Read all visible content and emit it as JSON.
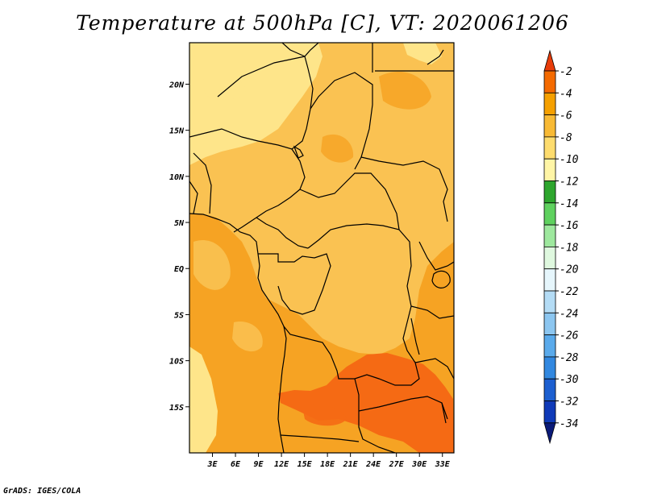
{
  "title": "Temperature at 500hPa [C], VT: 2020061206",
  "credit": "GrADS: IGES/COLA",
  "map": {
    "lon_range": [
      0,
      34.5
    ],
    "lat_range": [
      -20,
      24.5
    ],
    "lon_ticks": [
      {
        "value": 3,
        "label": "3E"
      },
      {
        "value": 6,
        "label": "6E"
      },
      {
        "value": 9,
        "label": "9E"
      },
      {
        "value": 12,
        "label": "12E"
      },
      {
        "value": 15,
        "label": "15E"
      },
      {
        "value": 18,
        "label": "18E"
      },
      {
        "value": 21,
        "label": "21E"
      },
      {
        "value": 24,
        "label": "24E"
      },
      {
        "value": 27,
        "label": "27E"
      },
      {
        "value": 30,
        "label": "30E"
      },
      {
        "value": 33,
        "label": "33E"
      }
    ],
    "lat_ticks": [
      {
        "value": 20,
        "label": "20N"
      },
      {
        "value": 15,
        "label": "15N"
      },
      {
        "value": 10,
        "label": "10N"
      },
      {
        "value": 5,
        "label": "5N"
      },
      {
        "value": 0,
        "label": "EQ"
      },
      {
        "value": -5,
        "label": "5S"
      },
      {
        "value": -10,
        "label": "10S"
      },
      {
        "value": -15,
        "label": "15S"
      }
    ]
  },
  "colorbar": {
    "labels": [
      "-2",
      "-4",
      "-6",
      "-8",
      "-10",
      "-12",
      "-14",
      "-16",
      "-18",
      "-20",
      "-22",
      "-24",
      "-26",
      "-28",
      "-30",
      "-32",
      "-34"
    ],
    "colors": [
      "#e83c0a",
      "#f46a00",
      "#f5a000",
      "#f8ba35",
      "#fddc6e",
      "#fff5a6",
      "#2ea62e",
      "#5fd15f",
      "#9ee89e",
      "#dff8df",
      "#e6f6fc",
      "#b4dcf5",
      "#8cc6f0",
      "#5aaaeb",
      "#3288e0",
      "#1c5fd0",
      "#0f3ab8",
      "#0a1a78"
    ]
  },
  "colors": {
    "band_minus10_to_8": "#fee58a",
    "band_minus8_to_6": "#fac252",
    "band_minus6_to_4": "#f6a323",
    "band_minus4_to_2": "#f56a14",
    "boundaries": "#000000"
  }
}
